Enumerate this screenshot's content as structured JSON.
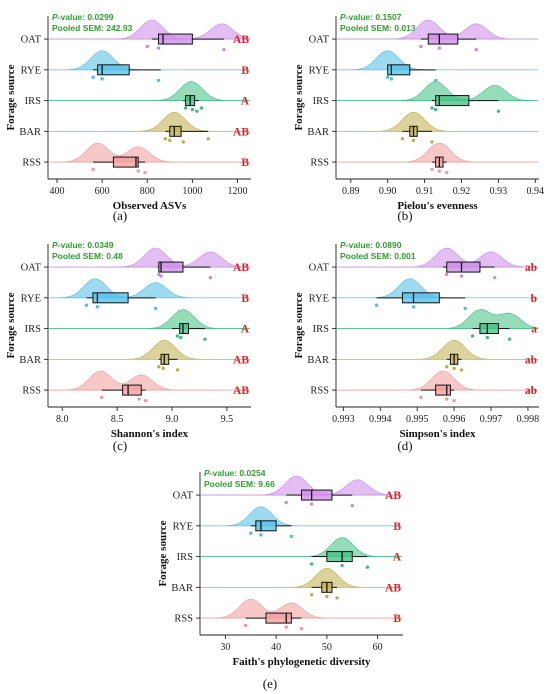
{
  "colors": {
    "OAT": "#cc88e8",
    "RYE": "#4fbde6",
    "IRS": "#3fbf7f",
    "BAR": "#c0ad4a",
    "RSS": "#f19a9a",
    "stat_text": "#2ea02e",
    "significance": "#e02020"
  },
  "chart_data": [
    {
      "type": "raincloud",
      "panel_label": "(a)",
      "p_label": "P-value: 0.0299",
      "sem_label": "Pooled SEM: 242.93",
      "xlabel": "Observed ASVs",
      "ylabel": "Forage source",
      "xlim": [
        360,
        1260
      ],
      "xticks": [
        400,
        600,
        800,
        1000,
        1200
      ],
      "xtick_labels": [
        "400",
        "600",
        "800",
        "1000",
        "1200"
      ],
      "categories": [
        "OAT",
        "RYE",
        "IRS",
        "BAR",
        "RSS"
      ],
      "series": [
        {
          "name": "OAT",
          "box": [
            820,
            850,
            870,
            1000,
            1140
          ],
          "points": [
            800,
            850,
            1140
          ],
          "density_peaks": [
            820,
            1130
          ],
          "letter": "AB"
        },
        {
          "name": "RYE",
          "box": [
            560,
            580,
            600,
            720,
            860
          ],
          "points": [
            560,
            600,
            850
          ],
          "density_peaks": [
            600
          ],
          "letter": "B"
        },
        {
          "name": "IRS",
          "box": [
            960,
            970,
            990,
            1010,
            1030
          ],
          "points": [
            970,
            1000,
            1020,
            1040
          ],
          "density_peaks": [
            995
          ],
          "letter": "A"
        },
        {
          "name": "BAR",
          "box": [
            880,
            900,
            920,
            950,
            1070
          ],
          "points": [
            880,
            900,
            960,
            1070
          ],
          "density_peaks": [
            920
          ],
          "letter": "AB"
        },
        {
          "name": "RSS",
          "box": [
            560,
            650,
            750,
            760,
            790
          ],
          "points": [
            560,
            760,
            790
          ],
          "density_peaks": [
            580,
            760
          ],
          "letter": "B"
        }
      ]
    },
    {
      "type": "raincloud",
      "panel_label": "(b)",
      "p_label": "P-value: 0.1507",
      "sem_label": "Pooled SEM: 0.013",
      "xlabel": "Pielou's evenness",
      "ylabel": "Forage source",
      "xlim": [
        0.886,
        0.941
      ],
      "xticks": [
        0.89,
        0.9,
        0.91,
        0.92,
        0.93,
        0.94
      ],
      "xtick_labels": [
        "0.89",
        "0.90",
        "0.91",
        "0.92",
        "0.93",
        "0.94"
      ],
      "categories": [
        "OAT",
        "RYE",
        "IRS",
        "BAR",
        "RSS"
      ],
      "series": [
        {
          "name": "OAT",
          "box": [
            0.909,
            0.911,
            0.914,
            0.919,
            0.924
          ],
          "points": [
            0.909,
            0.914,
            0.924
          ],
          "density_peaks": [
            0.911,
            0.924
          ],
          "letter": ""
        },
        {
          "name": "RYE",
          "box": [
            0.9,
            0.9,
            0.901,
            0.906,
            0.913
          ],
          "points": [
            0.9,
            0.901,
            0.913
          ],
          "density_peaks": [
            0.9
          ],
          "letter": ""
        },
        {
          "name": "IRS",
          "box": [
            0.912,
            0.913,
            0.914,
            0.922,
            0.93
          ],
          "points": [
            0.912,
            0.913,
            0.93
          ],
          "density_peaks": [
            0.913,
            0.929
          ],
          "letter": ""
        },
        {
          "name": "BAR",
          "box": [
            0.904,
            0.906,
            0.907,
            0.908,
            0.912
          ],
          "points": [
            0.904,
            0.907,
            0.912
          ],
          "density_peaks": [
            0.907
          ],
          "letter": ""
        },
        {
          "name": "RSS",
          "box": [
            0.912,
            0.913,
            0.914,
            0.915,
            0.916
          ],
          "points": [
            0.912,
            0.914,
            0.916
          ],
          "density_peaks": [
            0.914
          ],
          "letter": ""
        }
      ]
    },
    {
      "type": "raincloud",
      "panel_label": "(c)",
      "p_label": "P-value: 0.0349",
      "sem_label": "Pooled SEM: 0.48",
      "xlabel": "Shannon's index",
      "ylabel": "Forage source",
      "xlim": [
        7.87,
        9.72
      ],
      "xticks": [
        8.0,
        8.5,
        9.0,
        9.5
      ],
      "xtick_labels": [
        "8.0",
        "8.5",
        "9.0",
        "9.5"
      ],
      "categories": [
        "OAT",
        "RYE",
        "IRS",
        "BAR",
        "RSS"
      ],
      "series": [
        {
          "name": "OAT",
          "box": [
            8.87,
            8.88,
            8.9,
            9.1,
            9.35
          ],
          "points": [
            8.88,
            8.9,
            9.35
          ],
          "density_peaks": [
            8.85,
            9.35
          ],
          "letter": "AB"
        },
        {
          "name": "RYE",
          "box": [
            8.22,
            8.28,
            8.32,
            8.6,
            8.85
          ],
          "points": [
            8.22,
            8.32,
            8.85
          ],
          "density_peaks": [
            8.3,
            8.85
          ],
          "letter": "B"
        },
        {
          "name": "IRS",
          "box": [
            9.0,
            9.07,
            9.1,
            9.15,
            9.3
          ],
          "points": [
            9.05,
            9.08,
            9.3
          ],
          "density_peaks": [
            9.1
          ],
          "letter": "A"
        },
        {
          "name": "BAR",
          "box": [
            8.88,
            8.9,
            8.93,
            8.97,
            9.05
          ],
          "points": [
            8.88,
            8.92,
            9.05
          ],
          "density_peaks": [
            8.93
          ],
          "letter": "AB"
        },
        {
          "name": "RSS",
          "box": [
            8.36,
            8.55,
            8.6,
            8.72,
            8.76
          ],
          "points": [
            8.36,
            8.7,
            8.76
          ],
          "density_peaks": [
            8.35,
            8.72
          ],
          "letter": "AB"
        }
      ]
    },
    {
      "type": "raincloud",
      "panel_label": "(d)",
      "p_label": "P-value: 0.0890",
      "sem_label": "Pooled SEM: 0.001",
      "xlabel": "Simpson's index",
      "ylabel": "Forage source",
      "xlim": [
        0.9928,
        0.9983
      ],
      "xticks": [
        0.993,
        0.994,
        0.995,
        0.996,
        0.997,
        0.998
      ],
      "xtick_labels": [
        "0.993",
        "0.994",
        "0.995",
        "0.996",
        "0.997",
        "0.998"
      ],
      "categories": [
        "OAT",
        "RYE",
        "IRS",
        "BAR",
        "RSS"
      ],
      "series": [
        {
          "name": "OAT",
          "box": [
            0.9957,
            0.9958,
            0.9962,
            0.9967,
            0.9971
          ],
          "points": [
            0.9958,
            0.9962,
            0.9971
          ],
          "density_peaks": [
            0.9958,
            0.997
          ],
          "letter": "ab"
        },
        {
          "name": "RYE",
          "box": [
            0.9939,
            0.9946,
            0.9949,
            0.9956,
            0.9963
          ],
          "points": [
            0.9939,
            0.9949,
            0.9963
          ],
          "density_peaks": [
            0.9948
          ],
          "letter": "b"
        },
        {
          "name": "IRS",
          "box": [
            0.9965,
            0.9967,
            0.9969,
            0.9972,
            0.9975
          ],
          "points": [
            0.9965,
            0.9969,
            0.9975
          ],
          "density_peaks": [
            0.9967,
            0.9975
          ],
          "letter": "a"
        },
        {
          "name": "BAR",
          "box": [
            0.9958,
            0.9959,
            0.996,
            0.9961,
            0.9962
          ],
          "points": [
            0.9958,
            0.996,
            0.9962
          ],
          "density_peaks": [
            0.996
          ],
          "letter": "ab"
        },
        {
          "name": "RSS",
          "box": [
            0.9951,
            0.9955,
            0.9958,
            0.9959,
            0.996
          ],
          "points": [
            0.9951,
            0.9958,
            0.996
          ],
          "density_peaks": [
            0.9957
          ],
          "letter": "ab"
        }
      ]
    },
    {
      "type": "raincloud",
      "panel_label": "(e)",
      "p_label": "P-value: 0.0254",
      "sem_label": "Pooled SEM: 9.66",
      "xlabel": "Faith's phylogenetic diversity",
      "ylabel": "Forage source",
      "xlim": [
        25,
        65
      ],
      "xticks": [
        30,
        40,
        50,
        60
      ],
      "xtick_labels": [
        "30",
        "40",
        "50",
        "60"
      ],
      "categories": [
        "OAT",
        "RYE",
        "IRS",
        "BAR",
        "RSS"
      ],
      "series": [
        {
          "name": "OAT",
          "box": [
            42,
            45,
            47,
            51,
            55
          ],
          "points": [
            42,
            47,
            55
          ],
          "density_peaks": [
            44,
            56
          ],
          "letter": "AB"
        },
        {
          "name": "RYE",
          "box": [
            35,
            36,
            37,
            40,
            43
          ],
          "points": [
            35,
            37,
            43
          ],
          "density_peaks": [
            37
          ],
          "letter": "B"
        },
        {
          "name": "IRS",
          "box": [
            47,
            50,
            53,
            55,
            58
          ],
          "points": [
            47,
            53,
            58
          ],
          "density_peaks": [
            53
          ],
          "letter": "A"
        },
        {
          "name": "BAR",
          "box": [
            47,
            49,
            50,
            51,
            52
          ],
          "points": [
            47,
            50,
            52
          ],
          "density_peaks": [
            50
          ],
          "letter": "AB"
        },
        {
          "name": "RSS",
          "box": [
            34,
            38,
            42,
            43,
            45
          ],
          "points": [
            34,
            42,
            45
          ],
          "density_peaks": [
            35,
            43
          ],
          "letter": "B"
        }
      ]
    }
  ]
}
